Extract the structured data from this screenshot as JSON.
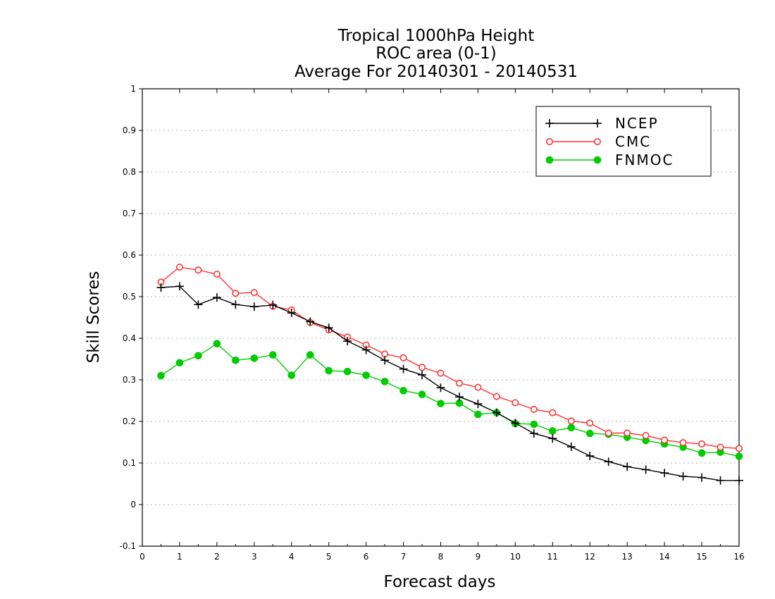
{
  "chart_data": {
    "type": "line",
    "title": [
      "Tropical 1000hPa Height",
      "ROC area (0-1)",
      "Average For 20140301 - 20140531"
    ],
    "xlabel": "Forecast days",
    "ylabel": "Skill Scores",
    "xlim": [
      0,
      16
    ],
    "ylim": [
      -0.1,
      1
    ],
    "xticks": [
      "0",
      "1",
      "2",
      "3",
      "4",
      "5",
      "6",
      "7",
      "8",
      "9",
      "10",
      "11",
      "12",
      "13",
      "14",
      "15",
      "16"
    ],
    "yticks": [
      "-0.1",
      "0",
      "0.1",
      "0.2",
      "0.3",
      "0.4",
      "0.5",
      "0.6",
      "0.7",
      "0.8",
      "0.9",
      "1"
    ],
    "grid": true,
    "legend_position": "top-right",
    "x": [
      0.5,
      1,
      1.5,
      2,
      2.5,
      3,
      3.5,
      4,
      4.5,
      5,
      5.5,
      6,
      6.5,
      7,
      7.5,
      8,
      8.5,
      9,
      9.5,
      10,
      10.5,
      11,
      11.5,
      12,
      12.5,
      13,
      13.5,
      14,
      14.5,
      15,
      15.5,
      16
    ],
    "series": [
      {
        "name": "NCEP",
        "color": "#000000",
        "marker": "plus",
        "values": [
          0.522,
          0.525,
          0.481,
          0.498,
          0.481,
          0.476,
          0.48,
          0.461,
          0.44,
          0.425,
          0.393,
          0.372,
          0.347,
          0.326,
          0.312,
          0.281,
          0.259,
          0.242,
          0.221,
          0.196,
          0.171,
          0.159,
          0.139,
          0.117,
          0.103,
          0.091,
          0.084,
          0.076,
          0.068,
          0.065,
          0.058,
          0.058
        ]
      },
      {
        "name": "CMC",
        "color": "#ff3333",
        "marker": "open-circle",
        "values": [
          0.535,
          0.571,
          0.564,
          0.554,
          0.508,
          0.51,
          0.477,
          0.468,
          0.438,
          0.42,
          0.403,
          0.384,
          0.362,
          0.353,
          0.33,
          0.316,
          0.292,
          0.282,
          0.26,
          0.245,
          0.229,
          0.221,
          0.201,
          0.196,
          0.172,
          0.172,
          0.166,
          0.155,
          0.149,
          0.146,
          0.138,
          0.135
        ]
      },
      {
        "name": "FNMOC",
        "color": "#00cc00",
        "marker": "filled-circle",
        "values": [
          0.31,
          0.341,
          0.358,
          0.387,
          0.347,
          0.352,
          0.36,
          0.311,
          0.36,
          0.322,
          0.32,
          0.311,
          0.296,
          0.274,
          0.265,
          0.243,
          0.244,
          0.217,
          0.221,
          0.195,
          0.193,
          0.177,
          0.185,
          0.171,
          0.169,
          0.162,
          0.154,
          0.146,
          0.138,
          0.124,
          0.126,
          0.116
        ]
      }
    ]
  }
}
